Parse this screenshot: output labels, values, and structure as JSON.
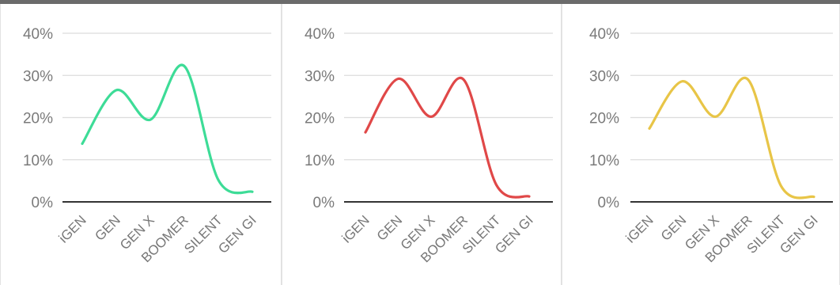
{
  "chart_data": [
    {
      "type": "line",
      "categories": [
        "iGEN",
        "GEN",
        "GEN X",
        "BOOMER",
        "SILENT",
        "GEN GI"
      ],
      "series": [
        {
          "values": [
            13.8,
            26.5,
            19.5,
            32.2,
            5.2,
            2.4
          ],
          "color": "#3ddc97"
        }
      ],
      "y_ticks": [
        "0%",
        "10%",
        "20%",
        "30%",
        "40%"
      ],
      "ylim": [
        0,
        40
      ],
      "grid": true,
      "smooth": true
    },
    {
      "type": "line",
      "categories": [
        "iGEN",
        "GEN",
        "GEN X",
        "BOOMER",
        "SILENT",
        "GEN GI"
      ],
      "series": [
        {
          "values": [
            16.5,
            29.2,
            20.2,
            29.0,
            4.0,
            1.3
          ],
          "color": "#e04848"
        }
      ],
      "y_ticks": [
        "0%",
        "10%",
        "20%",
        "30%",
        "40%"
      ],
      "ylim": [
        0,
        40
      ],
      "grid": true,
      "smooth": true
    },
    {
      "type": "line",
      "categories": [
        "iGEN",
        "GEN",
        "GEN X",
        "BOOMER",
        "SILENT",
        "GEN GI"
      ],
      "series": [
        {
          "values": [
            17.4,
            28.6,
            20.2,
            29.0,
            3.8,
            1.2
          ],
          "color": "#e8c547"
        }
      ],
      "y_ticks": [
        "0%",
        "10%",
        "20%",
        "30%",
        "40%"
      ],
      "ylim": [
        0,
        40
      ],
      "grid": true,
      "smooth": true
    }
  ]
}
